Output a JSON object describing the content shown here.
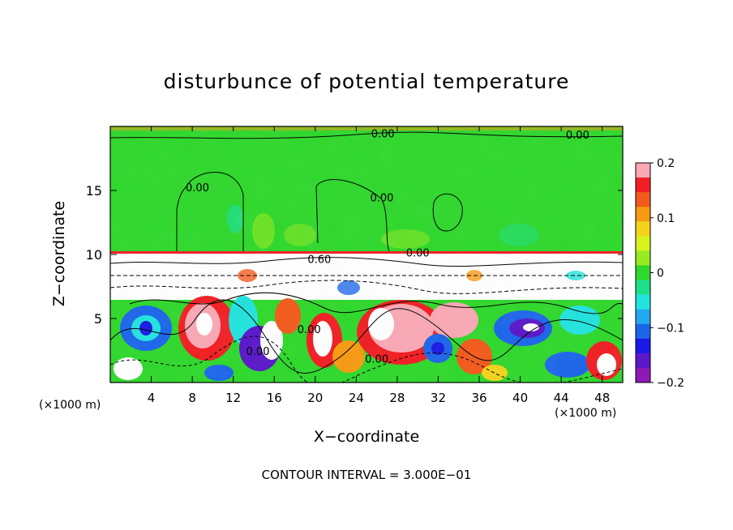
{
  "chart_data": {
    "type": "heatmap",
    "title": "disturbunce of potential temperature",
    "xlabel": "X−coordinate",
    "ylabel": "Z−coordinate",
    "x_unit_left": "(×1000 m)",
    "x_unit_right": "(×1000 m)",
    "footer": "CONTOUR INTERVAL = 3.000E−01",
    "xlim": [
      0,
      50
    ],
    "ylim": [
      0,
      20
    ],
    "x_ticks": [
      4,
      8,
      12,
      16,
      20,
      24,
      28,
      32,
      36,
      40,
      44,
      48
    ],
    "x_tick_labels": [
      "4",
      "8",
      "12",
      "16",
      "20",
      "24",
      "28",
      "32",
      "36",
      "40",
      "44",
      "48"
    ],
    "y_ticks": [
      5,
      10,
      15
    ],
    "y_tick_labels": [
      "5",
      "10",
      "15"
    ],
    "colorbar": {
      "range": [
        -0.2,
        0.2
      ],
      "ticks": [
        0.2,
        0.1,
        0,
        -0.1,
        -0.2
      ],
      "tick_labels": [
        "0.2",
        "0.1",
        "0",
        "−0.1",
        "−0.2"
      ],
      "colors": [
        "#f9a8b4",
        "#f11f23",
        "#f35a1c",
        "#f69a12",
        "#f3d31b",
        "#d8f21d",
        "#98ea22",
        "#2fd82c",
        "#1ee08a",
        "#22e3de",
        "#23a9f1",
        "#1d66ea",
        "#1a1ae6",
        "#5a18c9",
        "#8d1ab6"
      ]
    },
    "contour_labels": [
      {
        "text": "0.00",
        "x": 26.6,
        "y": 19.4
      },
      {
        "text": "0.00",
        "x": 45.6,
        "y": 19.3
      },
      {
        "text": "0.00",
        "x": 8.5,
        "y": 15.2
      },
      {
        "text": "0.00",
        "x": 26.5,
        "y": 14.4
      },
      {
        "text": "0.00",
        "x": 30.0,
        "y": 10.1
      },
      {
        "text": "0.60",
        "x": 20.4,
        "y": 9.6
      },
      {
        "text": "0.00",
        "x": 19.4,
        "y": 4.1
      },
      {
        "text": "0.00",
        "x": 14.4,
        "y": 2.4
      },
      {
        "text": "0.00",
        "x": 26.0,
        "y": 1.8
      }
    ]
  }
}
